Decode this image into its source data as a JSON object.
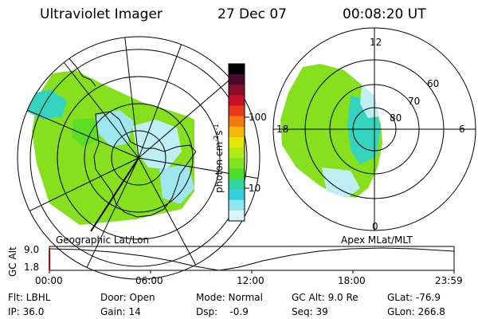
{
  "header": {
    "instrument": "Ultraviolet Imager",
    "date": "27 Dec 07",
    "time": "00:08:20 UT"
  },
  "left_panel": {
    "caption": "Geographic Lat/Lon"
  },
  "right_panel": {
    "caption": "Apex MLat/MLT",
    "mlt_labels": [
      "12",
      "18",
      "6",
      "0"
    ],
    "mlat_labels": [
      "60",
      "70",
      "80"
    ]
  },
  "colorbar": {
    "unit_label": "photon cm",
    "unit_exp1": "-2",
    "unit_s": "s",
    "unit_exp2": "-1",
    "ticks": [
      "100",
      "10"
    ],
    "colors": [
      "#000000",
      "#4b0b30",
      "#8a0d2a",
      "#c8102a",
      "#e83a1a",
      "#f07a10",
      "#f6b60a",
      "#e6e60a",
      "#b2ea18",
      "#7ee21c",
      "#4fdc2a",
      "#30d5a0",
      "#36cfe0",
      "#8fe6f0",
      "#d8f6fa"
    ]
  },
  "altitude_plot": {
    "ylabel": "GC Alt",
    "yticks": [
      "9.0",
      "1.8"
    ],
    "xticks": [
      "00:00",
      "06:00",
      "12:00",
      "18:00",
      "23:59"
    ]
  },
  "info": {
    "filter": "Flt: LBHL",
    "ip": "IP: 36.0",
    "door": "Door: Open",
    "gain": "Gain: 14",
    "mode": "Mode: Normal",
    "dsp": "Dsp:    -0.9",
    "gc_alt": "GC Alt: 9.0 Re",
    "seq": "Seq: 39",
    "glat": "GLat: -76.9",
    "glon": "GLon: 266.8"
  }
}
